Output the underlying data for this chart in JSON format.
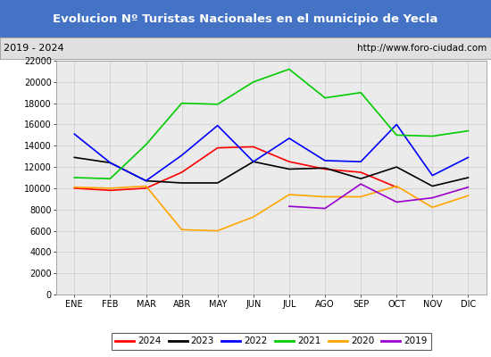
{
  "title": "Evolucion Nº Turistas Nacionales en el municipio de Yecla",
  "subtitle_left": "2019 - 2024",
  "subtitle_right": "http://www.foro-ciudad.com",
  "title_bg_color": "#4472c4",
  "title_text_color": "#ffffff",
  "subtitle_bg_color": "#e0e0e0",
  "plot_bg_color": "#ebebeb",
  "months": [
    "ENE",
    "FEB",
    "MAR",
    "ABR",
    "MAY",
    "JUN",
    "JUL",
    "AGO",
    "SEP",
    "OCT",
    "NOV",
    "DIC"
  ],
  "ylim": [
    0,
    22000
  ],
  "yticks": [
    0,
    2000,
    4000,
    6000,
    8000,
    10000,
    12000,
    14000,
    16000,
    18000,
    20000,
    22000
  ],
  "series": {
    "2024": {
      "color": "#ff0000",
      "data": [
        10000,
        9800,
        10000,
        11500,
        13800,
        13900,
        12500,
        11800,
        11500,
        10100,
        null,
        null
      ]
    },
    "2023": {
      "color": "#000000",
      "data": [
        12900,
        12400,
        10700,
        10500,
        10500,
        12500,
        11800,
        11900,
        10900,
        12000,
        10200,
        11000
      ]
    },
    "2022": {
      "color": "#0000ff",
      "data": [
        15100,
        12400,
        10700,
        13100,
        15900,
        12500,
        14700,
        12600,
        12500,
        16000,
        11200,
        12900
      ]
    },
    "2021": {
      "color": "#00cc00",
      "data": [
        11000,
        10900,
        14100,
        18000,
        17900,
        20000,
        21200,
        18500,
        19000,
        15000,
        14900,
        15400
      ]
    },
    "2020": {
      "color": "#ffa500",
      "data": [
        10100,
        10000,
        10200,
        6100,
        6000,
        7300,
        9400,
        9200,
        9200,
        10200,
        8200,
        9300
      ]
    },
    "2019": {
      "color": "#9900cc",
      "data": [
        null,
        null,
        null,
        null,
        null,
        null,
        8300,
        8100,
        10400,
        8700,
        9100,
        10100
      ]
    }
  },
  "legend_order": [
    "2024",
    "2023",
    "2022",
    "2021",
    "2020",
    "2019"
  ]
}
